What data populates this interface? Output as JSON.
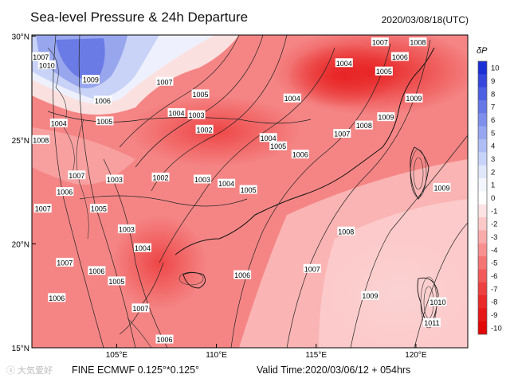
{
  "header": {
    "title": "Sea-level Pressure & 24h Departure",
    "datetime": "2020/03/08/18(UTC)"
  },
  "footer": {
    "model": "FINE ECMWF 0.125°*0.125°",
    "valid": "Valid Time:2020/03/06/12 + 054hrs",
    "watermark": "ⓢ 大気爱好"
  },
  "map": {
    "lat_labels": [
      "30°N",
      "25°N",
      "20°N",
      "15°N"
    ],
    "lon_labels": [
      "105°E",
      "110°E",
      "115°E",
      "120°E"
    ],
    "isobar_labels": [
      {
        "text": "1007",
        "lon": 101.2,
        "lat": 29.0
      },
      {
        "text": "1010",
        "lon": 101.5,
        "lat": 28.6
      },
      {
        "text": "1009",
        "lon": 103.7,
        "lat": 27.9
      },
      {
        "text": "1006",
        "lon": 104.3,
        "lat": 26.9
      },
      {
        "text": "1004",
        "lon": 102.1,
        "lat": 25.8
      },
      {
        "text": "1008",
        "lon": 101.2,
        "lat": 25.0
      },
      {
        "text": "1007",
        "lon": 107.4,
        "lat": 27.8
      },
      {
        "text": "1005",
        "lon": 109.2,
        "lat": 27.2
      },
      {
        "text": "1003",
        "lon": 109.0,
        "lat": 26.2
      },
      {
        "text": "1004",
        "lon": 108.0,
        "lat": 26.3
      },
      {
        "text": "1005",
        "lon": 104.4,
        "lat": 25.9
      },
      {
        "text": "1002",
        "lon": 109.4,
        "lat": 25.5
      },
      {
        "text": "1004",
        "lon": 112.6,
        "lat": 25.1
      },
      {
        "text": "1005",
        "lon": 113.1,
        "lat": 24.7
      },
      {
        "text": "1004",
        "lon": 113.8,
        "lat": 27.0
      },
      {
        "text": "1004",
        "lon": 116.4,
        "lat": 28.7
      },
      {
        "text": "1005",
        "lon": 118.4,
        "lat": 28.3
      },
      {
        "text": "1006",
        "lon": 119.2,
        "lat": 29.0
      },
      {
        "text": "1007",
        "lon": 118.2,
        "lat": 29.7
      },
      {
        "text": "1008",
        "lon": 120.1,
        "lat": 29.7
      },
      {
        "text": "1009",
        "lon": 119.9,
        "lat": 27.0
      },
      {
        "text": "1007",
        "lon": 116.3,
        "lat": 25.3
      },
      {
        "text": "1008",
        "lon": 117.4,
        "lat": 25.7
      },
      {
        "text": "1009",
        "lon": 118.5,
        "lat": 26.1
      },
      {
        "text": "1006",
        "lon": 114.2,
        "lat": 24.3
      },
      {
        "text": "1005",
        "lon": 111.6,
        "lat": 22.6
      },
      {
        "text": "1004",
        "lon": 110.5,
        "lat": 22.9
      },
      {
        "text": "1003",
        "lon": 109.3,
        "lat": 23.1
      },
      {
        "text": "1002",
        "lon": 107.2,
        "lat": 23.2
      },
      {
        "text": "1003",
        "lon": 104.9,
        "lat": 23.1
      },
      {
        "text": "1007",
        "lon": 103.0,
        "lat": 23.3
      },
      {
        "text": "1006",
        "lon": 102.4,
        "lat": 22.5
      },
      {
        "text": "1005",
        "lon": 104.1,
        "lat": 21.7
      },
      {
        "text": "1003",
        "lon": 105.5,
        "lat": 20.7
      },
      {
        "text": "1007",
        "lon": 101.3,
        "lat": 21.7
      },
      {
        "text": "1004",
        "lon": 106.3,
        "lat": 19.8
      },
      {
        "text": "1006",
        "lon": 104.0,
        "lat": 18.7
      },
      {
        "text": "1005",
        "lon": 105.0,
        "lat": 18.2
      },
      {
        "text": "1007",
        "lon": 102.4,
        "lat": 19.1
      },
      {
        "text": "1006",
        "lon": 102.0,
        "lat": 17.4
      },
      {
        "text": "1007",
        "lon": 106.2,
        "lat": 16.9
      },
      {
        "text": "1006",
        "lon": 111.3,
        "lat": 18.5
      },
      {
        "text": "1007",
        "lon": 114.8,
        "lat": 18.8
      },
      {
        "text": "1008",
        "lon": 116.5,
        "lat": 20.6
      },
      {
        "text": "1006",
        "lon": 107.4,
        "lat": 15.4
      },
      {
        "text": "1009",
        "lon": 121.3,
        "lat": 22.7
      },
      {
        "text": "1009",
        "lon": 117.7,
        "lat": 17.5
      },
      {
        "text": "1010",
        "lon": 121.1,
        "lat": 17.2
      },
      {
        "text": "1011",
        "lon": 120.8,
        "lat": 16.2
      }
    ]
  },
  "colorbar": {
    "title": "δP",
    "ticks": [
      "10",
      "9",
      "8",
      "7",
      "6",
      "5",
      "4",
      "3",
      "2",
      "1",
      "0",
      "-1",
      "-2",
      "-3",
      "-4",
      "-5",
      "-6",
      "-7",
      "-8",
      "-9",
      "-10"
    ],
    "colors": [
      "#1b2fd6",
      "#3446dc",
      "#4d5fe2",
      "#6677e6",
      "#7e8feb",
      "#97a6f0",
      "#afbdf4",
      "#c7d3f8",
      "#dfe7fb",
      "#f4f6fd",
      "#ffffff",
      "#fde3e3",
      "#fcc8c8",
      "#faacac",
      "#f89090",
      "#f57575",
      "#f25a5a",
      "#ee4040",
      "#ea2a2a",
      "#e61818",
      "#e20808"
    ]
  }
}
